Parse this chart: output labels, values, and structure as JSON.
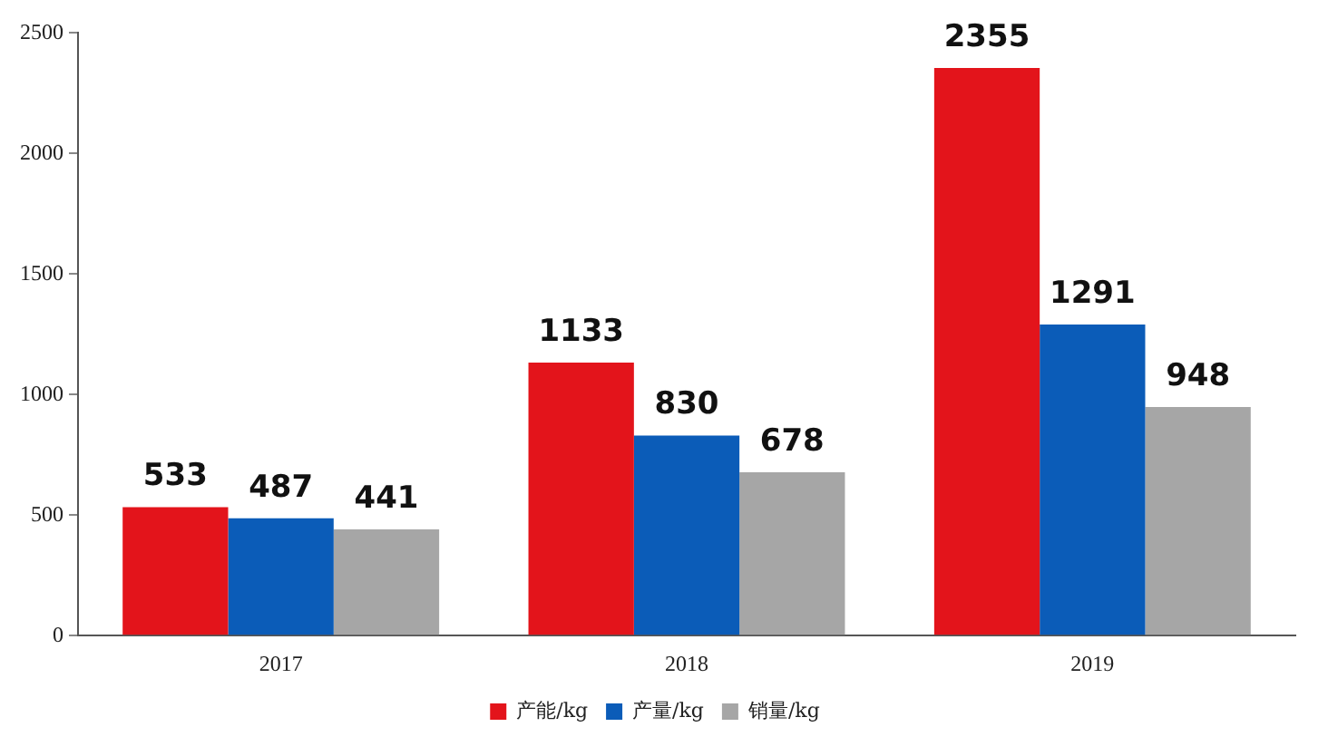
{
  "chart_data": {
    "type": "bar",
    "categories": [
      "2017",
      "2018",
      "2019"
    ],
    "series": [
      {
        "name": "产能/kg",
        "color": "#e3141b",
        "values": [
          533,
          1133,
          2355
        ]
      },
      {
        "name": "产量/kg",
        "color": "#0b5cb8",
        "values": [
          487,
          830,
          1291
        ]
      },
      {
        "name": "销量/kg",
        "color": "#a6a6a6",
        "values": [
          441,
          678,
          948
        ]
      }
    ],
    "ylim": [
      0,
      2500
    ],
    "yticks": [
      0,
      500,
      1000,
      1500,
      2000,
      2500
    ],
    "grid": false,
    "legend": "bottom",
    "data_labels": true
  }
}
